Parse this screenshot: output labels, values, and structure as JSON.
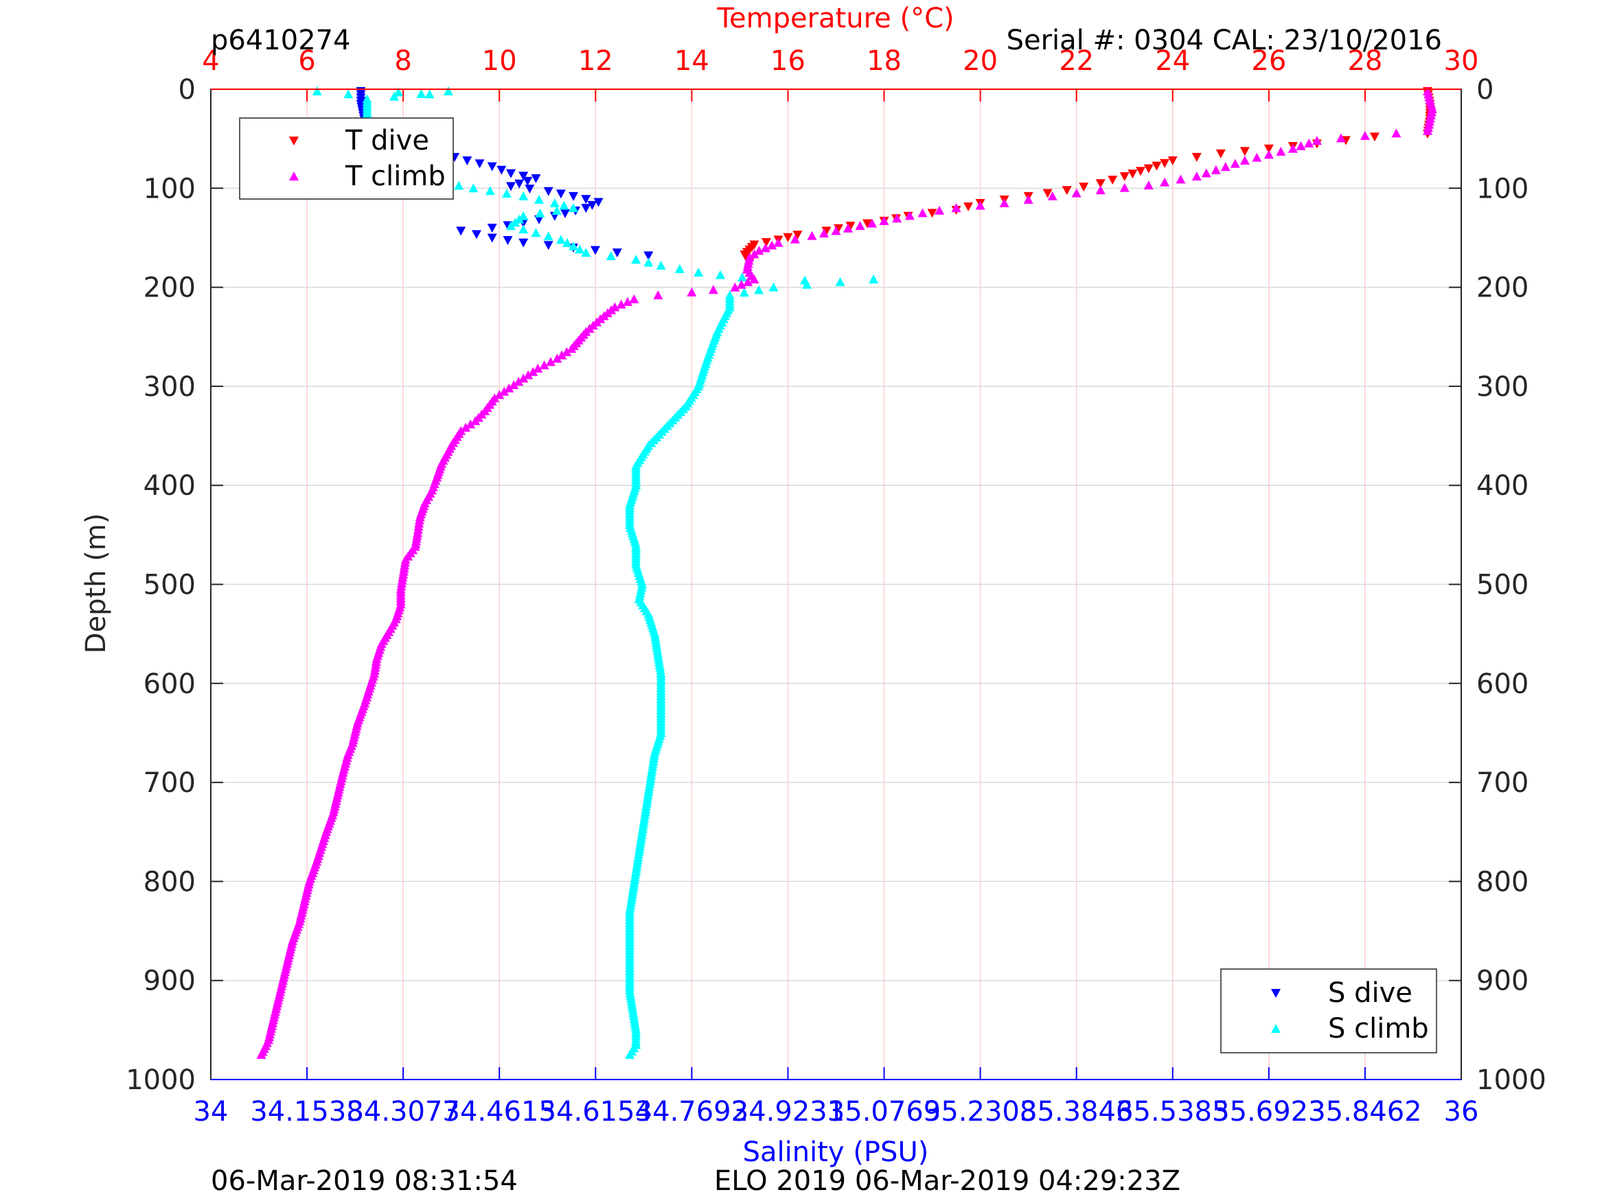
{
  "header": {
    "profile_id": "p6410274",
    "serial_cal": "Serial #: 0304  CAL: 23/10/2016"
  },
  "footer": {
    "left_timestamp": "06-Mar-2019 08:31:54",
    "center_label": "ELO 2019 06-Mar-2019 04:29:23Z"
  },
  "legend_temperature": {
    "labels": [
      "T dive",
      "T climb"
    ]
  },
  "legend_salinity": {
    "labels": [
      "S dive",
      "S climb"
    ]
  },
  "colors": {
    "t_dive": "#ff0000",
    "t_climb": "#ff00ff",
    "s_dive": "#0000ff",
    "s_climb": "#00ffff",
    "temp_axis": "#ff0000",
    "sal_axis": "#0000ff"
  },
  "chart_data": {
    "type": "scatter",
    "title": "",
    "ylabel": "Depth (m)",
    "x_top_label": "Temperature (°C)",
    "x_bottom_label": "Salinity (PSU)",
    "y_reversed": true,
    "ylim": [
      0,
      1000
    ],
    "y_ticks": [
      "0",
      "100",
      "200",
      "300",
      "400",
      "500",
      "600",
      "700",
      "800",
      "900",
      "1000"
    ],
    "temp_lim": [
      4,
      30
    ],
    "temp_ticks": [
      "4",
      "6",
      "8",
      "10",
      "12",
      "14",
      "16",
      "18",
      "20",
      "22",
      "24",
      "26",
      "28",
      "30"
    ],
    "sal_lim": [
      34,
      36
    ],
    "sal_ticks": [
      "34",
      "34.1538",
      "34.3077",
      "34.4615",
      "34.6154",
      "34.7692",
      "34.9231",
      "35.0769",
      "35.2308",
      "35.3846",
      "35.5385",
      "35.6923",
      "35.8462",
      "36"
    ],
    "grid": true,
    "legend_placement": [
      "top-left",
      "bottom-right"
    ],
    "series": [
      {
        "name": "T dive",
        "axis": "temperature",
        "marker": "triangle-down",
        "points": [
          [
            29.3,
            2
          ],
          [
            29.35,
            15
          ],
          [
            29.35,
            30
          ],
          [
            29.3,
            45
          ],
          [
            28.2,
            48
          ],
          [
            27.0,
            55
          ],
          [
            26.0,
            60
          ],
          [
            25.0,
            65
          ],
          [
            24.0,
            72
          ],
          [
            23.5,
            80
          ],
          [
            23.0,
            88
          ],
          [
            22.5,
            95
          ],
          [
            21.8,
            102
          ],
          [
            21.0,
            108
          ],
          [
            20.0,
            115
          ],
          [
            19.5,
            122
          ],
          [
            18.5,
            128
          ],
          [
            18.0,
            133
          ],
          [
            17.3,
            138
          ],
          [
            16.8,
            143
          ],
          [
            16.2,
            147
          ],
          [
            15.8,
            152
          ],
          [
            15.3,
            157
          ],
          [
            15.2,
            162
          ],
          [
            15.1,
            167
          ],
          [
            15.2,
            175
          ]
        ]
      },
      {
        "name": "T climb",
        "axis": "temperature",
        "marker": "triangle-up",
        "points": [
          [
            29.3,
            2
          ],
          [
            29.4,
            20
          ],
          [
            29.3,
            42
          ],
          [
            28.0,
            47
          ],
          [
            27.0,
            52
          ],
          [
            26.5,
            60
          ],
          [
            25.5,
            72
          ],
          [
            24.5,
            88
          ],
          [
            23.5,
            97
          ],
          [
            22.5,
            102
          ],
          [
            21.5,
            108
          ],
          [
            20.5,
            115
          ],
          [
            19.5,
            120
          ],
          [
            18.8,
            125
          ],
          [
            18.0,
            133
          ],
          [
            17.5,
            138
          ],
          [
            17.0,
            143
          ],
          [
            16.5,
            148
          ],
          [
            15.8,
            155
          ],
          [
            15.4,
            163
          ],
          [
            15.2,
            170
          ],
          [
            15.15,
            182
          ],
          [
            15.3,
            192
          ],
          [
            14.9,
            200
          ],
          [
            14.0,
            205
          ],
          [
            13.3,
            208
          ],
          [
            12.8,
            212
          ],
          [
            12.4,
            220
          ],
          [
            12.1,
            232
          ],
          [
            11.8,
            245
          ],
          [
            11.5,
            262
          ],
          [
            11.2,
            272
          ],
          [
            10.8,
            282
          ],
          [
            10.5,
            292
          ],
          [
            10.2,
            302
          ],
          [
            9.9,
            312
          ],
          [
            9.7,
            325
          ],
          [
            9.5,
            335
          ],
          [
            9.2,
            345
          ],
          [
            9.0,
            360
          ],
          [
            8.8,
            378
          ],
          [
            8.7,
            392
          ],
          [
            8.6,
            405
          ],
          [
            8.45,
            418
          ],
          [
            8.35,
            432
          ],
          [
            8.3,
            448
          ],
          [
            8.25,
            462
          ],
          [
            8.05,
            475
          ],
          [
            8.0,
            490
          ],
          [
            7.95,
            505
          ],
          [
            7.95,
            520
          ],
          [
            7.85,
            535
          ],
          [
            7.7,
            548
          ],
          [
            7.55,
            560
          ],
          [
            7.45,
            575
          ],
          [
            7.4,
            590
          ],
          [
            7.3,
            605
          ],
          [
            7.2,
            620
          ],
          [
            7.05,
            640
          ],
          [
            6.95,
            660
          ],
          [
            6.85,
            672
          ],
          [
            6.75,
            690
          ],
          [
            6.65,
            710
          ],
          [
            6.55,
            730
          ],
          [
            6.4,
            750
          ],
          [
            6.3,
            765
          ],
          [
            6.2,
            780
          ],
          [
            6.05,
            800
          ],
          [
            5.95,
            820
          ],
          [
            5.85,
            840
          ],
          [
            5.7,
            860
          ],
          [
            5.6,
            880
          ],
          [
            5.5,
            900
          ],
          [
            5.4,
            920
          ],
          [
            5.3,
            940
          ],
          [
            5.2,
            960
          ],
          [
            5.05,
            975
          ]
        ]
      },
      {
        "name": "S dive",
        "axis": "salinity",
        "marker": "triangle-down",
        "points": [
          [
            34.24,
            2
          ],
          [
            34.24,
            15
          ],
          [
            34.245,
            30
          ],
          [
            34.26,
            42
          ],
          [
            34.3,
            50
          ],
          [
            34.32,
            58
          ],
          [
            34.37,
            65
          ],
          [
            34.41,
            72
          ],
          [
            34.45,
            78
          ],
          [
            34.48,
            85
          ],
          [
            34.52,
            90
          ],
          [
            34.48,
            98
          ],
          [
            34.54,
            103
          ],
          [
            34.58,
            108
          ],
          [
            34.62,
            114
          ],
          [
            34.6,
            120
          ],
          [
            34.55,
            128
          ],
          [
            34.5,
            135
          ],
          [
            34.45,
            140
          ],
          [
            34.4,
            143
          ],
          [
            34.45,
            150
          ],
          [
            34.5,
            155
          ],
          [
            34.58,
            160
          ],
          [
            34.65,
            165
          ],
          [
            34.7,
            168
          ]
        ]
      },
      {
        "name": "S climb",
        "axis": "salinity",
        "marker": "triangle-up",
        "points": [
          [
            34.17,
            2
          ],
          [
            34.22,
            5
          ],
          [
            34.3,
            3
          ],
          [
            34.35,
            5
          ],
          [
            34.38,
            2
          ],
          [
            34.25,
            10
          ],
          [
            34.25,
            30
          ],
          [
            34.23,
            45
          ],
          [
            34.18,
            50
          ],
          [
            34.2,
            58
          ],
          [
            34.25,
            65
          ],
          [
            34.28,
            75
          ],
          [
            34.31,
            85
          ],
          [
            34.35,
            92
          ],
          [
            34.42,
            100
          ],
          [
            34.5,
            108
          ],
          [
            34.55,
            115
          ],
          [
            34.58,
            120
          ],
          [
            34.5,
            128
          ],
          [
            34.48,
            138
          ],
          [
            34.52,
            145
          ],
          [
            34.56,
            152
          ],
          [
            34.6,
            165
          ],
          [
            34.68,
            172
          ],
          [
            34.72,
            178
          ],
          [
            34.78,
            185
          ],
          [
            34.85,
            190
          ],
          [
            34.95,
            193
          ],
          [
            35.06,
            192
          ],
          [
            34.9,
            200
          ],
          [
            34.83,
            208
          ],
          [
            34.83,
            220
          ],
          [
            34.82,
            232
          ],
          [
            34.81,
            245
          ],
          [
            34.8,
            262
          ],
          [
            34.79,
            280
          ],
          [
            34.78,
            300
          ],
          [
            34.76,
            320
          ],
          [
            34.73,
            340
          ],
          [
            34.7,
            360
          ],
          [
            34.68,
            380
          ],
          [
            34.68,
            400
          ],
          [
            34.67,
            420
          ],
          [
            34.67,
            440
          ],
          [
            34.68,
            460
          ],
          [
            34.68,
            480
          ],
          [
            34.69,
            500
          ],
          [
            34.685,
            515
          ],
          [
            34.7,
            530
          ],
          [
            34.71,
            550
          ],
          [
            34.715,
            570
          ],
          [
            34.72,
            590
          ],
          [
            34.72,
            610
          ],
          [
            34.72,
            630
          ],
          [
            34.72,
            650
          ],
          [
            34.71,
            670
          ],
          [
            34.705,
            690
          ],
          [
            34.7,
            710
          ],
          [
            34.695,
            730
          ],
          [
            34.69,
            750
          ],
          [
            34.685,
            770
          ],
          [
            34.68,
            790
          ],
          [
            34.675,
            810
          ],
          [
            34.67,
            830
          ],
          [
            34.67,
            850
          ],
          [
            34.67,
            870
          ],
          [
            34.67,
            890
          ],
          [
            34.67,
            910
          ],
          [
            34.675,
            930
          ],
          [
            34.68,
            950
          ],
          [
            34.68,
            965
          ],
          [
            34.67,
            975
          ]
        ]
      }
    ]
  }
}
